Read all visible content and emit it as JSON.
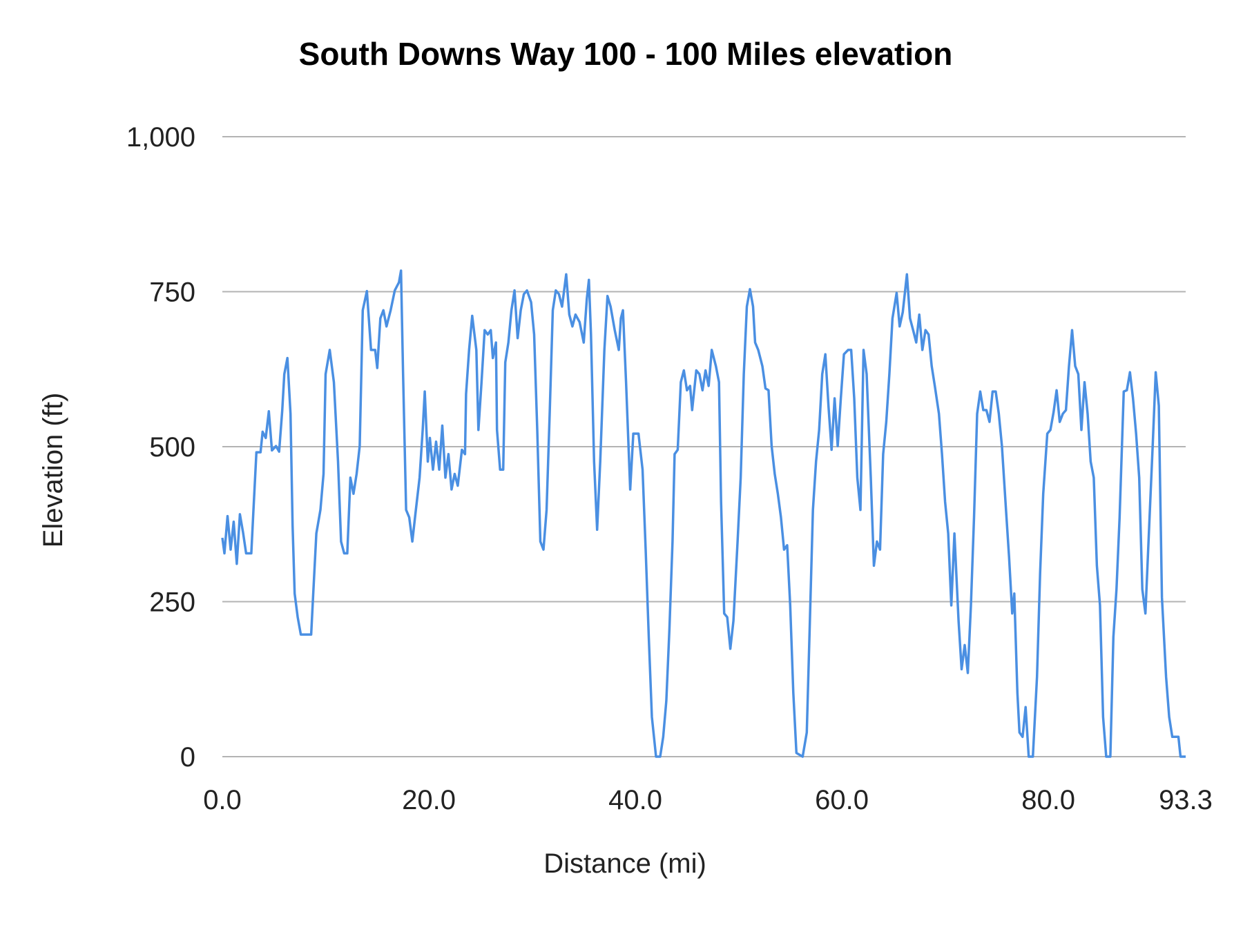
{
  "chart_data": {
    "type": "line",
    "title": "South Downs Way 100 - 100 Miles elevation",
    "xlabel": "Distance (mi)",
    "ylabel": "Elevation (ft)",
    "xlim": [
      0,
      93.3
    ],
    "ylim": [
      0,
      1000
    ],
    "x_ticks": [
      "0.0",
      "20.0",
      "40.0",
      "60.0",
      "80.0",
      "93.3"
    ],
    "x_tick_values": [
      0,
      20,
      40,
      60,
      80,
      93.3
    ],
    "y_ticks": [
      "0",
      "250",
      "500",
      "750",
      "1,000"
    ],
    "y_tick_values": [
      0,
      250,
      500,
      750,
      1000
    ],
    "grid": "horizontal",
    "legend": "none",
    "line_color": "#4a8fe2",
    "grid_color": "#b3b3b3",
    "series": [
      {
        "points": [
          [
            0,
            353
          ],
          [
            0.2,
            328
          ],
          [
            0.5,
            388
          ],
          [
            0.8,
            334
          ],
          [
            1.1,
            379
          ],
          [
            1.4,
            311
          ],
          [
            1.7,
            391
          ],
          [
            2.0,
            362
          ],
          [
            2.3,
            328
          ],
          [
            2.8,
            328
          ],
          [
            3.0,
            395
          ],
          [
            3.3,
            491
          ],
          [
            3.7,
            491
          ],
          [
            3.9,
            524
          ],
          [
            4.2,
            514
          ],
          [
            4.5,
            557
          ],
          [
            4.8,
            494
          ],
          [
            5.2,
            501
          ],
          [
            5.5,
            492
          ],
          [
            5.8,
            558
          ],
          [
            6.0,
            617
          ],
          [
            6.3,
            643
          ],
          [
            6.6,
            553
          ],
          [
            6.8,
            373
          ],
          [
            7.0,
            263
          ],
          [
            7.3,
            225
          ],
          [
            7.6,
            197
          ],
          [
            8.6,
            197
          ],
          [
            8.8,
            263
          ],
          [
            9.1,
            360
          ],
          [
            9.5,
            398
          ],
          [
            9.8,
            456
          ],
          [
            10.0,
            617
          ],
          [
            10.4,
            656
          ],
          [
            10.8,
            604
          ],
          [
            11.2,
            476
          ],
          [
            11.5,
            347
          ],
          [
            11.8,
            328
          ],
          [
            12.1,
            328
          ],
          [
            12.4,
            450
          ],
          [
            12.7,
            424
          ],
          [
            13.0,
            456
          ],
          [
            13.3,
            501
          ],
          [
            13.6,
            720
          ],
          [
            14.0,
            751
          ],
          [
            14.4,
            656
          ],
          [
            14.8,
            656
          ],
          [
            15.0,
            627
          ],
          [
            15.3,
            707
          ],
          [
            15.6,
            720
          ],
          [
            15.9,
            694
          ],
          [
            16.3,
            720
          ],
          [
            16.7,
            752
          ],
          [
            17.1,
            765
          ],
          [
            17.3,
            784
          ],
          [
            17.5,
            617
          ],
          [
            17.8,
            398
          ],
          [
            18.1,
            386
          ],
          [
            18.4,
            347
          ],
          [
            18.7,
            392
          ],
          [
            19.1,
            450
          ],
          [
            19.4,
            527
          ],
          [
            19.6,
            589
          ],
          [
            19.9,
            476
          ],
          [
            20.1,
            514
          ],
          [
            20.4,
            463
          ],
          [
            20.7,
            508
          ],
          [
            21.0,
            463
          ],
          [
            21.3,
            534
          ],
          [
            21.6,
            450
          ],
          [
            21.9,
            488
          ],
          [
            22.2,
            431
          ],
          [
            22.5,
            456
          ],
          [
            22.8,
            437
          ],
          [
            23.2,
            495
          ],
          [
            23.5,
            488
          ],
          [
            23.6,
            585
          ],
          [
            23.9,
            656
          ],
          [
            24.2,
            711
          ],
          [
            24.6,
            656
          ],
          [
            24.8,
            527
          ],
          [
            25.1,
            604
          ],
          [
            25.4,
            688
          ],
          [
            25.7,
            681
          ],
          [
            26.0,
            688
          ],
          [
            26.2,
            643
          ],
          [
            26.5,
            668
          ],
          [
            26.6,
            527
          ],
          [
            26.9,
            463
          ],
          [
            27.2,
            463
          ],
          [
            27.4,
            636
          ],
          [
            27.7,
            668
          ],
          [
            28.0,
            720
          ],
          [
            28.3,
            752
          ],
          [
            28.6,
            675
          ],
          [
            28.9,
            720
          ],
          [
            29.2,
            746
          ],
          [
            29.5,
            752
          ],
          [
            29.9,
            733
          ],
          [
            30.2,
            681
          ],
          [
            30.5,
            527
          ],
          [
            30.8,
            347
          ],
          [
            31.1,
            334
          ],
          [
            31.4,
            398
          ],
          [
            31.7,
            553
          ],
          [
            32.0,
            720
          ],
          [
            32.3,
            752
          ],
          [
            32.6,
            746
          ],
          [
            32.9,
            726
          ],
          [
            33.3,
            778
          ],
          [
            33.6,
            713
          ],
          [
            33.9,
            694
          ],
          [
            34.2,
            713
          ],
          [
            34.6,
            701
          ],
          [
            35.0,
            668
          ],
          [
            35.3,
            739
          ],
          [
            35.5,
            769
          ],
          [
            35.7,
            681
          ],
          [
            36.0,
            476
          ],
          [
            36.3,
            366
          ],
          [
            36.6,
            476
          ],
          [
            37.0,
            656
          ],
          [
            37.3,
            743
          ],
          [
            37.6,
            726
          ],
          [
            38.0,
            688
          ],
          [
            38.4,
            656
          ],
          [
            38.6,
            707
          ],
          [
            38.8,
            720
          ],
          [
            39.1,
            604
          ],
          [
            39.5,
            431
          ],
          [
            39.8,
            521
          ],
          [
            40.3,
            521
          ],
          [
            40.7,
            463
          ],
          [
            41.0,
            334
          ],
          [
            41.3,
            193
          ],
          [
            41.6,
            64
          ],
          [
            42.0,
            0
          ],
          [
            42.4,
            0
          ],
          [
            42.7,
            32
          ],
          [
            43.0,
            90
          ],
          [
            43.3,
            206
          ],
          [
            43.6,
            347
          ],
          [
            43.8,
            488
          ],
          [
            44.1,
            495
          ],
          [
            44.4,
            604
          ],
          [
            44.7,
            623
          ],
          [
            45.0,
            591
          ],
          [
            45.3,
            598
          ],
          [
            45.5,
            559
          ],
          [
            45.9,
            623
          ],
          [
            46.2,
            617
          ],
          [
            46.5,
            591
          ],
          [
            46.8,
            623
          ],
          [
            47.1,
            598
          ],
          [
            47.4,
            656
          ],
          [
            47.8,
            630
          ],
          [
            48.1,
            604
          ],
          [
            48.3,
            411
          ],
          [
            48.6,
            231
          ],
          [
            48.9,
            225
          ],
          [
            49.2,
            174
          ],
          [
            49.5,
            219
          ],
          [
            49.9,
            347
          ],
          [
            50.2,
            450
          ],
          [
            50.5,
            617
          ],
          [
            50.8,
            726
          ],
          [
            51.1,
            754
          ],
          [
            51.4,
            726
          ],
          [
            51.6,
            668
          ],
          [
            51.9,
            656
          ],
          [
            52.3,
            630
          ],
          [
            52.6,
            594
          ],
          [
            52.9,
            591
          ],
          [
            53.2,
            501
          ],
          [
            53.5,
            456
          ],
          [
            53.8,
            424
          ],
          [
            54.1,
            386
          ],
          [
            54.4,
            334
          ],
          [
            54.7,
            341
          ],
          [
            55.0,
            244
          ],
          [
            55.3,
            103
          ],
          [
            55.6,
            6
          ],
          [
            56.2,
            0
          ],
          [
            56.6,
            39
          ],
          [
            56.9,
            219
          ],
          [
            57.2,
            398
          ],
          [
            57.5,
            476
          ],
          [
            57.8,
            527
          ],
          [
            58.1,
            617
          ],
          [
            58.4,
            649
          ],
          [
            58.7,
            566
          ],
          [
            59.0,
            495
          ],
          [
            59.3,
            578
          ],
          [
            59.6,
            501
          ],
          [
            59.9,
            578
          ],
          [
            60.2,
            649
          ],
          [
            60.6,
            656
          ],
          [
            60.9,
            656
          ],
          [
            61.2,
            578
          ],
          [
            61.5,
            450
          ],
          [
            61.8,
            398
          ],
          [
            62.1,
            656
          ],
          [
            62.4,
            617
          ],
          [
            62.8,
            450
          ],
          [
            63.1,
            308
          ],
          [
            63.4,
            347
          ],
          [
            63.7,
            334
          ],
          [
            64.0,
            488
          ],
          [
            64.3,
            540
          ],
          [
            64.6,
            617
          ],
          [
            64.9,
            707
          ],
          [
            65.3,
            748
          ],
          [
            65.6,
            694
          ],
          [
            65.9,
            717
          ],
          [
            66.3,
            778
          ],
          [
            66.6,
            707
          ],
          [
            66.9,
            688
          ],
          [
            67.2,
            668
          ],
          [
            67.5,
            713
          ],
          [
            67.8,
            656
          ],
          [
            68.1,
            688
          ],
          [
            68.4,
            681
          ],
          [
            68.7,
            630
          ],
          [
            69.0,
            598
          ],
          [
            69.4,
            553
          ],
          [
            69.7,
            488
          ],
          [
            70.0,
            411
          ],
          [
            70.3,
            360
          ],
          [
            70.6,
            244
          ],
          [
            70.9,
            360
          ],
          [
            71.3,
            219
          ],
          [
            71.6,
            141
          ],
          [
            71.9,
            180
          ],
          [
            72.2,
            135
          ],
          [
            72.5,
            244
          ],
          [
            72.8,
            386
          ],
          [
            73.1,
            553
          ],
          [
            73.4,
            589
          ],
          [
            73.7,
            559
          ],
          [
            74.0,
            559
          ],
          [
            74.3,
            540
          ],
          [
            74.6,
            589
          ],
          [
            74.9,
            589
          ],
          [
            75.2,
            553
          ],
          [
            75.5,
            501
          ],
          [
            75.9,
            398
          ],
          [
            76.2,
            321
          ],
          [
            76.5,
            231
          ],
          [
            76.7,
            263
          ],
          [
            77.0,
            103
          ],
          [
            77.2,
            39
          ],
          [
            77.5,
            32
          ],
          [
            77.8,
            80
          ],
          [
            78.1,
            0
          ],
          [
            78.5,
            0
          ],
          [
            78.9,
            129
          ],
          [
            79.2,
            296
          ],
          [
            79.5,
            424
          ],
          [
            79.9,
            521
          ],
          [
            80.2,
            527
          ],
          [
            80.5,
            555
          ],
          [
            80.8,
            591
          ],
          [
            81.1,
            540
          ],
          [
            81.4,
            553
          ],
          [
            81.7,
            559
          ],
          [
            82.0,
            630
          ],
          [
            82.3,
            688
          ],
          [
            82.6,
            630
          ],
          [
            82.9,
            617
          ],
          [
            83.2,
            527
          ],
          [
            83.5,
            604
          ],
          [
            83.8,
            553
          ],
          [
            84.1,
            476
          ],
          [
            84.4,
            450
          ],
          [
            84.7,
            308
          ],
          [
            85.0,
            244
          ],
          [
            85.3,
            64
          ],
          [
            85.6,
            0
          ],
          [
            86.0,
            0
          ],
          [
            86.3,
            193
          ],
          [
            86.6,
            270
          ],
          [
            86.9,
            386
          ],
          [
            87.3,
            589
          ],
          [
            87.6,
            591
          ],
          [
            87.9,
            620
          ],
          [
            88.2,
            578
          ],
          [
            88.5,
            521
          ],
          [
            88.8,
            450
          ],
          [
            89.1,
            270
          ],
          [
            89.4,
            231
          ],
          [
            89.8,
            386
          ],
          [
            90.1,
            501
          ],
          [
            90.4,
            620
          ],
          [
            90.7,
            566
          ],
          [
            91.0,
            257
          ],
          [
            91.4,
            129
          ],
          [
            91.7,
            64
          ],
          [
            92.0,
            32
          ],
          [
            92.6,
            32
          ],
          [
            92.8,
            0
          ],
          [
            93.3,
            0
          ]
        ]
      }
    ]
  }
}
